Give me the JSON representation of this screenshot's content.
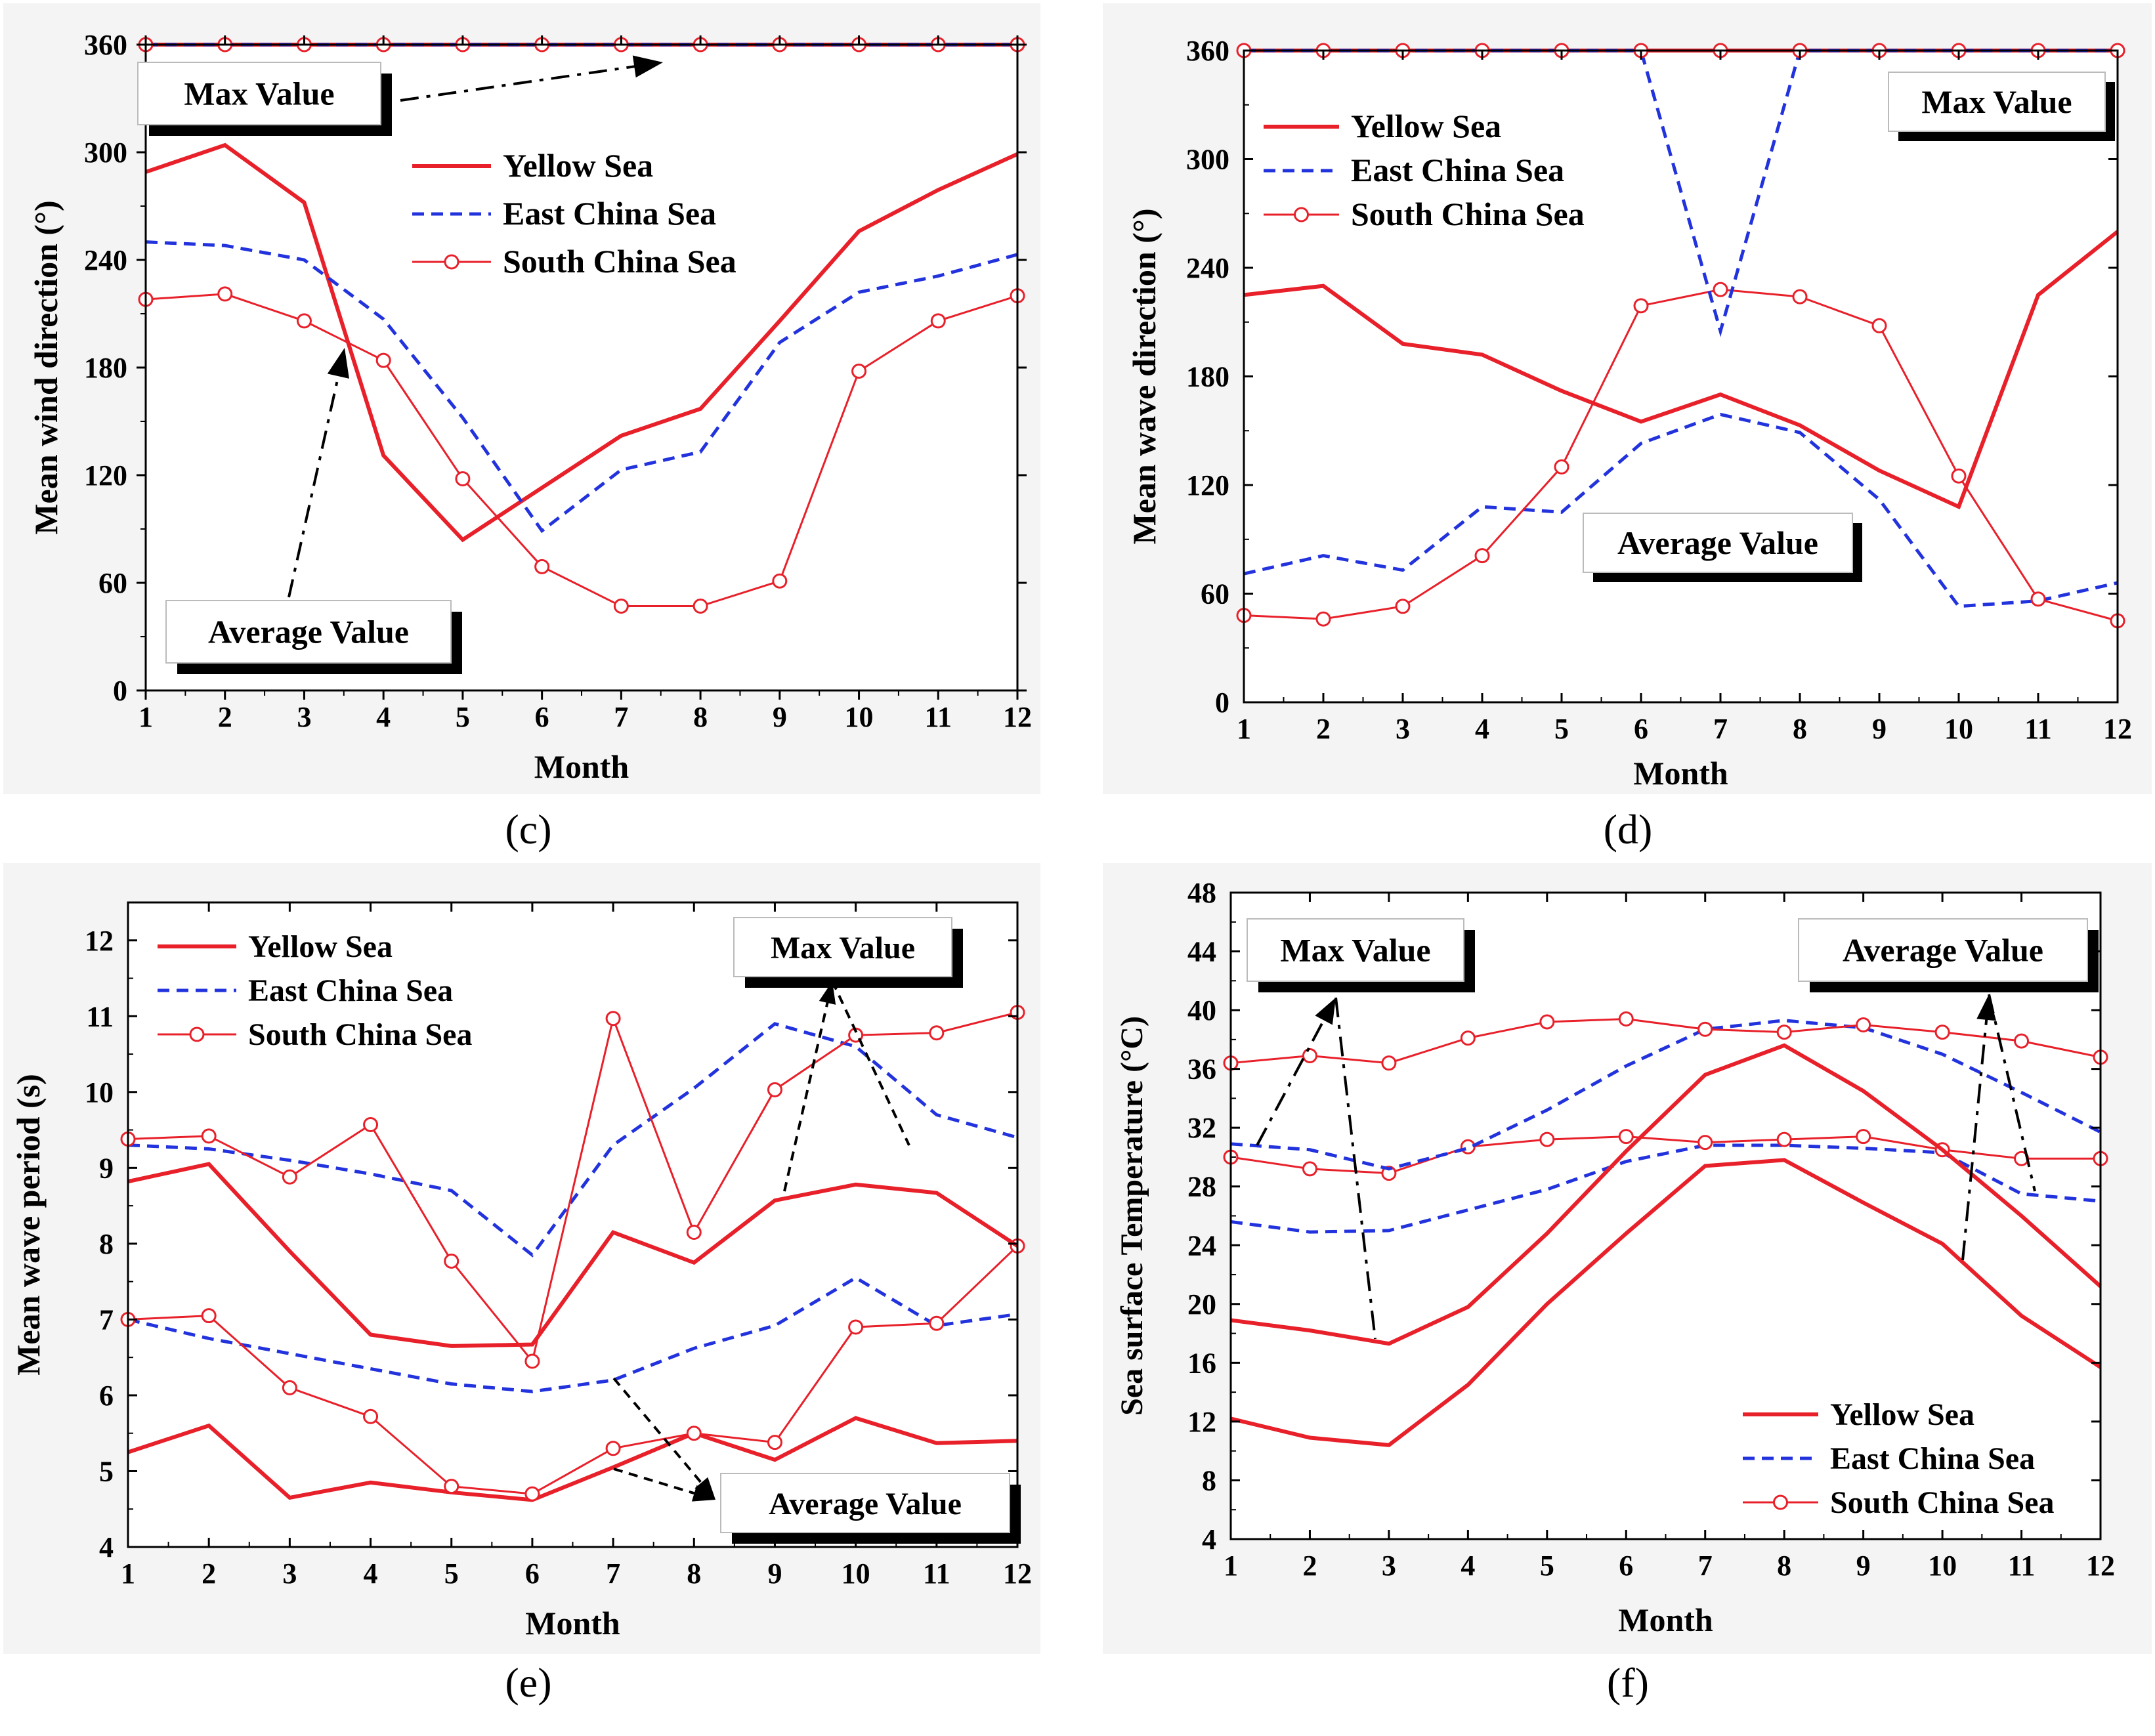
{
  "chart_data": [
    {
      "id": "c",
      "type": "line",
      "panel_label": "(c)",
      "xlabel": "Month",
      "ylabel": "Mean wind direction (°)",
      "x": [
        1,
        2,
        3,
        4,
        5,
        6,
        7,
        8,
        9,
        10,
        11,
        12
      ],
      "xlim": [
        1,
        12
      ],
      "ylim": [
        0,
        360
      ],
      "yticks": [
        0,
        60,
        120,
        180,
        240,
        300,
        360
      ],
      "legend": [
        "Yellow Sea",
        "East China Sea",
        "South China Sea"
      ],
      "series": [
        {
          "name": "Yellow Sea",
          "stat": "Average Value",
          "style": "solid",
          "values": [
            289,
            304,
            272,
            131,
            84,
            113,
            142,
            157,
            206,
            256,
            279,
            299
          ]
        },
        {
          "name": "East China Sea",
          "stat": "Average Value",
          "style": "dashed",
          "values": [
            250,
            248,
            240,
            207,
            152,
            89,
            123,
            133,
            194,
            222,
            231,
            243
          ]
        },
        {
          "name": "South China Sea",
          "stat": "Average Value",
          "style": "circle",
          "values": [
            218,
            221,
            206,
            184,
            118,
            69,
            47,
            47,
            61,
            178,
            206,
            220
          ]
        },
        {
          "name": "Yellow Sea",
          "stat": "Max Value",
          "style": "solid",
          "values": [
            360,
            360,
            360,
            360,
            360,
            360,
            360,
            360,
            360,
            360,
            360,
            360
          ]
        },
        {
          "name": "East China Sea",
          "stat": "Max Value",
          "style": "dashed",
          "values": [
            360,
            360,
            360,
            360,
            360,
            360,
            360,
            360,
            360,
            360,
            360,
            360
          ]
        },
        {
          "name": "South China Sea",
          "stat": "Max Value",
          "style": "circle",
          "values": [
            360,
            360,
            360,
            360,
            360,
            360,
            360,
            360,
            360,
            360,
            360,
            360
          ]
        }
      ],
      "annotations": [
        "Max Value",
        "Average Value"
      ]
    },
    {
      "id": "d",
      "type": "line",
      "panel_label": "(d)",
      "xlabel": "Month",
      "ylabel": "Mean wave direction (°)",
      "x": [
        1,
        2,
        3,
        4,
        5,
        6,
        7,
        8,
        9,
        10,
        11,
        12
      ],
      "xlim": [
        1,
        12
      ],
      "ylim": [
        0,
        360
      ],
      "yticks": [
        0,
        60,
        120,
        180,
        240,
        300,
        360
      ],
      "legend": [
        "Yellow Sea",
        "East China Sea",
        "South China Sea"
      ],
      "series": [
        {
          "name": "Yellow Sea",
          "stat": "Average Value",
          "style": "solid",
          "values": [
            225,
            230,
            198,
            192,
            172,
            155,
            170,
            153,
            128,
            108,
            225,
            260
          ]
        },
        {
          "name": "East China Sea",
          "stat": "Average Value",
          "style": "dashed",
          "values": [
            71,
            81,
            73,
            108,
            105,
            143,
            159,
            149,
            112,
            53,
            56,
            66
          ]
        },
        {
          "name": "South China Sea",
          "stat": "Average Value",
          "style": "circle",
          "values": [
            48,
            46,
            53,
            81,
            130,
            219,
            228,
            224,
            208,
            125,
            57,
            45
          ]
        },
        {
          "name": "Yellow Sea",
          "stat": "Max Value",
          "style": "solid",
          "values": [
            360,
            360,
            360,
            360,
            360,
            360,
            360,
            360,
            360,
            360,
            360,
            360
          ]
        },
        {
          "name": "East China Sea",
          "stat": "Max Value",
          "style": "dashed",
          "values": [
            360,
            360,
            360,
            360,
            360,
            360,
            205,
            360,
            360,
            360,
            360,
            360
          ]
        },
        {
          "name": "South China Sea",
          "stat": "Max Value",
          "style": "circle",
          "values": [
            360,
            360,
            360,
            360,
            360,
            360,
            360,
            360,
            360,
            360,
            360,
            360
          ]
        }
      ],
      "annotations": [
        "Max Value",
        "Average Value"
      ]
    },
    {
      "id": "e",
      "type": "line",
      "panel_label": "(e)",
      "xlabel": "Month",
      "ylabel": "Mean wave period (s)",
      "x": [
        1,
        2,
        3,
        4,
        5,
        6,
        7,
        8,
        9,
        10,
        11,
        12
      ],
      "xlim": [
        1,
        12
      ],
      "ylim": [
        4,
        12.5
      ],
      "yticks": [
        4,
        5,
        6,
        7,
        8,
        9,
        10,
        11,
        12
      ],
      "legend": [
        "Yellow Sea",
        "East China Sea",
        "South China Sea"
      ],
      "series": [
        {
          "name": "Yellow Sea",
          "stat": "Average Value",
          "style": "solid",
          "values": [
            5.25,
            5.6,
            4.65,
            4.85,
            4.72,
            4.62,
            5.05,
            5.5,
            5.15,
            5.7,
            5.37,
            5.4
          ]
        },
        {
          "name": "East China Sea",
          "stat": "Average Value",
          "style": "dashed",
          "values": [
            7.0,
            6.75,
            6.55,
            6.35,
            6.15,
            6.05,
            6.2,
            6.62,
            6.92,
            7.55,
            6.92,
            7.07
          ]
        },
        {
          "name": "South China Sea",
          "stat": "Average Value",
          "style": "circle",
          "values": [
            7.0,
            7.05,
            6.1,
            5.72,
            4.8,
            4.7,
            5.3,
            5.5,
            5.38,
            6.9,
            6.95,
            7.97
          ]
        },
        {
          "name": "Yellow Sea",
          "stat": "Max Value",
          "style": "solid",
          "values": [
            8.82,
            9.05,
            7.9,
            6.8,
            6.65,
            6.67,
            8.15,
            7.75,
            8.57,
            8.78,
            8.67,
            7.97
          ]
        },
        {
          "name": "East China Sea",
          "stat": "Max Value",
          "style": "dashed",
          "values": [
            9.3,
            9.25,
            9.1,
            8.92,
            8.7,
            7.85,
            9.3,
            10.05,
            10.9,
            10.6,
            9.7,
            9.4
          ]
        },
        {
          "name": "South China Sea",
          "stat": "Max Value",
          "style": "circle",
          "values": [
            9.38,
            9.42,
            8.88,
            9.57,
            7.77,
            6.45,
            10.97,
            8.15,
            10.03,
            10.75,
            10.78,
            11.05
          ]
        }
      ],
      "annotations": [
        "Max Value",
        "Average Value"
      ]
    },
    {
      "id": "f",
      "type": "line",
      "panel_label": "(f)",
      "xlabel": "Month",
      "ylabel": "Sea surface Temperature (°C)",
      "x": [
        1,
        2,
        3,
        4,
        5,
        6,
        7,
        8,
        9,
        10,
        11,
        12
      ],
      "xlim": [
        1,
        12
      ],
      "ylim": [
        4,
        48
      ],
      "yticks": [
        4,
        8,
        12,
        16,
        20,
        24,
        28,
        32,
        36,
        40,
        44,
        48
      ],
      "legend": [
        "Yellow Sea",
        "East China Sea",
        "South China Sea"
      ],
      "series": [
        {
          "name": "Yellow Sea",
          "stat": "Average Value",
          "style": "solid",
          "values": [
            12.2,
            10.9,
            10.4,
            14.5,
            20.0,
            24.8,
            29.4,
            29.8,
            26.9,
            24.1,
            19.2,
            15.7
          ]
        },
        {
          "name": "East China Sea",
          "stat": "Average Value",
          "style": "dashed",
          "values": [
            25.6,
            24.9,
            25.0,
            26.4,
            27.8,
            29.7,
            30.8,
            30.8,
            30.6,
            30.3,
            27.5,
            27.0
          ]
        },
        {
          "name": "South China Sea",
          "stat": "Average Value",
          "style": "circle",
          "values": [
            30.0,
            29.2,
            28.9,
            30.7,
            31.2,
            31.4,
            31.0,
            31.2,
            31.4,
            30.5,
            29.9,
            29.9
          ]
        },
        {
          "name": "Yellow Sea",
          "stat": "Max Value",
          "style": "solid",
          "values": [
            18.9,
            18.2,
            17.3,
            19.8,
            24.8,
            30.4,
            35.6,
            37.6,
            34.5,
            30.5,
            26.0,
            21.2
          ]
        },
        {
          "name": "East China Sea",
          "stat": "Max Value",
          "style": "dashed",
          "values": [
            30.9,
            30.5,
            29.2,
            30.6,
            33.2,
            36.2,
            38.7,
            39.3,
            38.8,
            37.0,
            34.4,
            31.7
          ]
        },
        {
          "name": "South China Sea",
          "stat": "Max Value",
          "style": "circle",
          "values": [
            36.4,
            36.9,
            36.4,
            38.1,
            39.2,
            39.4,
            38.7,
            38.5,
            39.0,
            38.5,
            37.9,
            36.8
          ]
        }
      ],
      "annotations": [
        "Max Value",
        "Average Value"
      ]
    }
  ],
  "colors": {
    "yellow_sea": "#e8202a",
    "east_china_sea": "#2233dd",
    "south_china_sea": "#e8202a",
    "axis": "#000000",
    "panel_bg": "#f4f4f4"
  }
}
